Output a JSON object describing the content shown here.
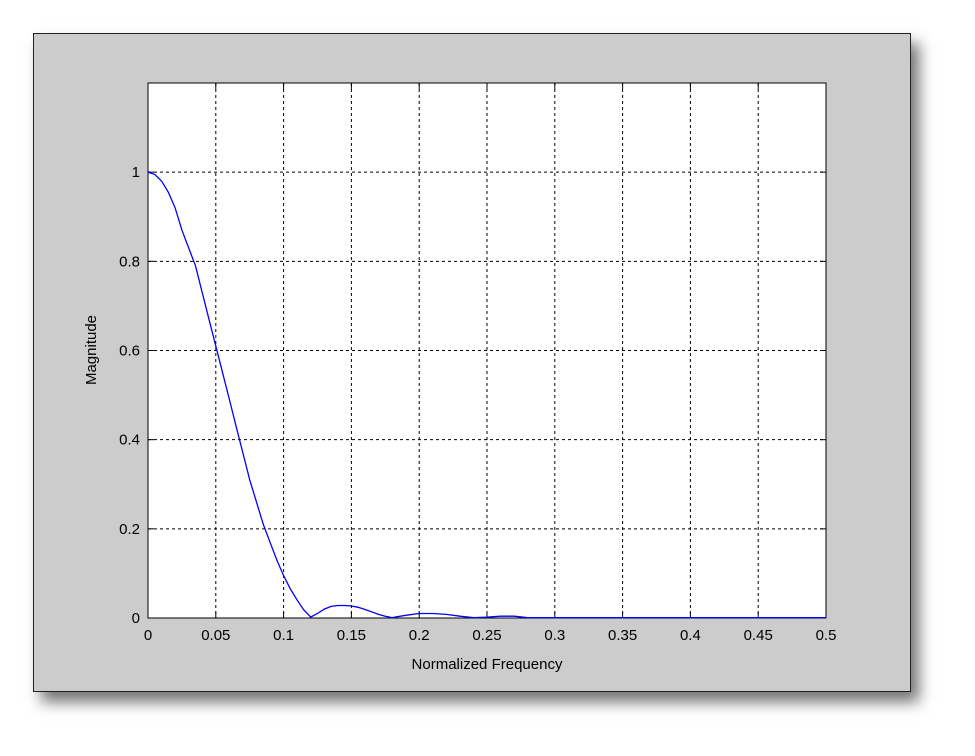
{
  "chart_data": {
    "type": "line",
    "title": "",
    "xlabel": "Normalized Frequency",
    "ylabel": "Magnitude",
    "xlim": [
      0,
      0.5
    ],
    "ylim": [
      0,
      1.2
    ],
    "xticks": [
      "0",
      "0.05",
      "0.1",
      "0.15",
      "0.2",
      "0.25",
      "0.3",
      "0.35",
      "0.4",
      "0.45",
      "0.5"
    ],
    "yticks": [
      "0",
      "0.2",
      "0.4",
      "0.6",
      "0.8",
      "1"
    ],
    "grid": true,
    "series": [
      {
        "color": "#0000ff",
        "x": [
          0,
          0.005,
          0.01,
          0.015,
          0.02,
          0.025,
          0.03,
          0.035,
          0.04,
          0.045,
          0.05,
          0.055,
          0.06,
          0.065,
          0.07,
          0.075,
          0.08,
          0.085,
          0.09,
          0.095,
          0.1,
          0.105,
          0.11,
          0.115,
          0.12,
          0.125,
          0.13,
          0.135,
          0.14,
          0.145,
          0.15,
          0.155,
          0.16,
          0.165,
          0.17,
          0.175,
          0.18,
          0.19,
          0.2,
          0.21,
          0.22,
          0.23,
          0.24,
          0.25,
          0.26,
          0.27,
          0.28,
          0.29,
          0.3,
          0.35,
          0.4,
          0.45,
          0.5
        ],
        "y": [
          1.0,
          0.995,
          0.98,
          0.955,
          0.92,
          0.87,
          0.83,
          0.79,
          0.73,
          0.67,
          0.61,
          0.55,
          0.49,
          0.43,
          0.37,
          0.31,
          0.26,
          0.21,
          0.17,
          0.13,
          0.095,
          0.065,
          0.04,
          0.018,
          0.002,
          0.01,
          0.02,
          0.026,
          0.028,
          0.028,
          0.027,
          0.024,
          0.019,
          0.014,
          0.008,
          0.004,
          0.001,
          0.006,
          0.01,
          0.01,
          0.008,
          0.004,
          0.001,
          0.002,
          0.004,
          0.004,
          0.001,
          0.001,
          0.001,
          0.001,
          0.001,
          0.001,
          0.001
        ]
      }
    ]
  }
}
